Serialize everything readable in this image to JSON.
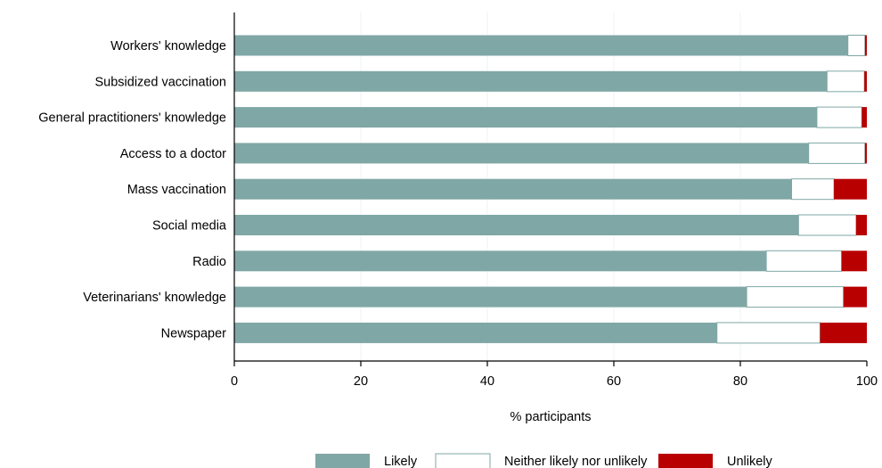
{
  "chart_data": {
    "type": "bar",
    "orientation": "horizontal",
    "stacked": true,
    "categories": [
      "Workers' knowledge",
      "Subsidized vaccination",
      "General practitioners' knowledge",
      "Access to a doctor",
      "Mass vaccination",
      "Social media",
      "Radio",
      "Veterinarians' knowledge",
      "Newspaper"
    ],
    "series": [
      {
        "name": "Likely",
        "color": "#7fa7a5",
        "values": [
          97.0,
          93.7,
          92.1,
          90.8,
          88.1,
          89.2,
          84.1,
          81.0,
          76.3
        ]
      },
      {
        "name": "Neither likely nor unlikely",
        "color": "#ffffff",
        "values": [
          2.7,
          5.9,
          7.1,
          8.9,
          6.7,
          9.1,
          11.9,
          15.3,
          16.3
        ]
      },
      {
        "name": "Unlikely",
        "color": "#b80000",
        "values": [
          0.3,
          0.4,
          0.8,
          0.3,
          5.2,
          1.7,
          4.0,
          3.7,
          7.4
        ]
      }
    ],
    "xlabel": "% participants",
    "ylabel": "",
    "xlim": [
      0,
      100
    ],
    "xticks": [
      0,
      20,
      40,
      60,
      80,
      100
    ],
    "grid": true,
    "legend_position": "bottom"
  }
}
